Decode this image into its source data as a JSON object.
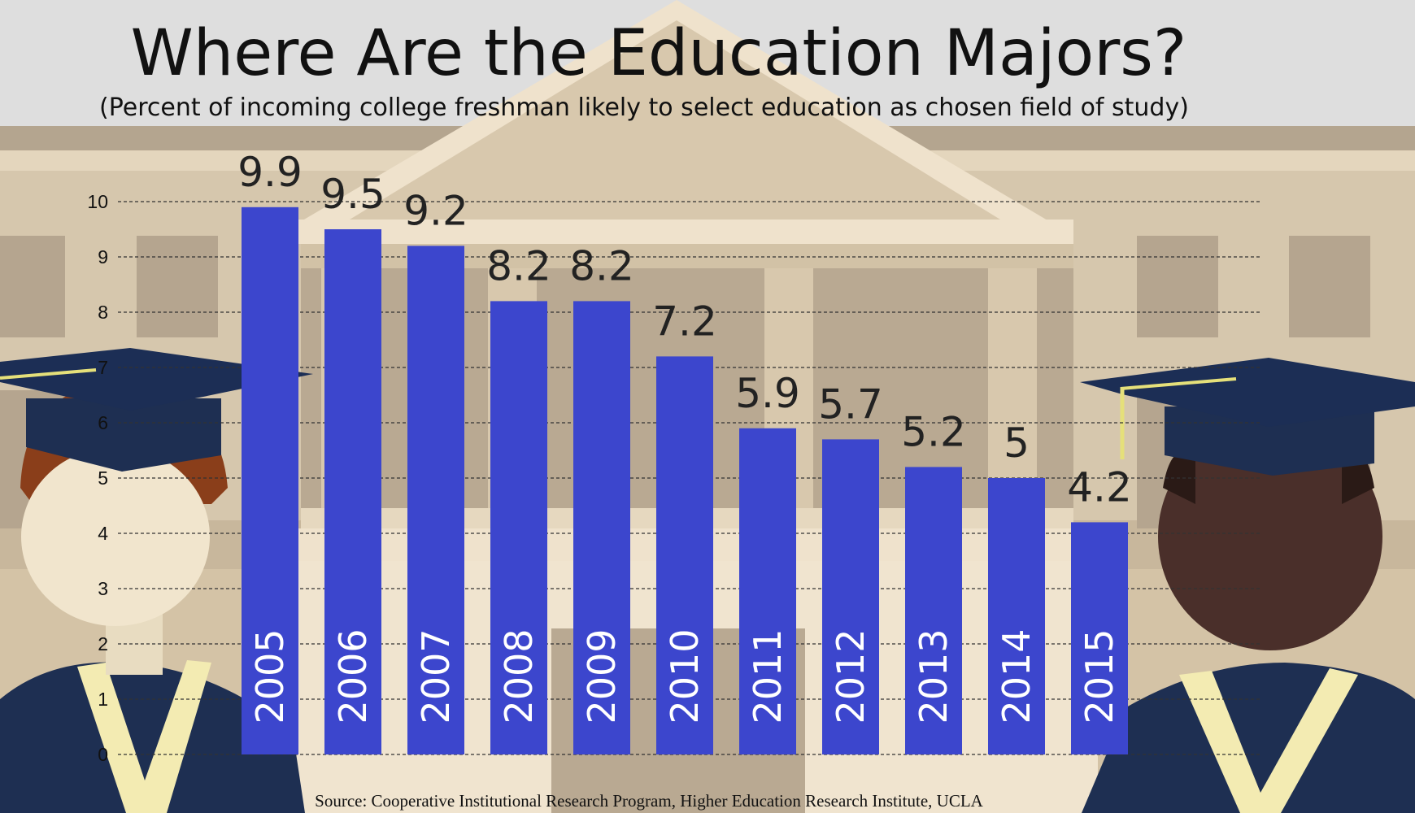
{
  "chart_data": {
    "type": "bar",
    "title": "Where Are the Education Majors?",
    "subtitle": "(Percent of incoming college freshman likely to select education as chosen field of study)",
    "source": "Source: Cooperative Institutional Research Program, Higher Education Research Institute, UCLA",
    "categories": [
      "2005",
      "2006",
      "2007",
      "2008",
      "2009",
      "2010",
      "2011",
      "2012",
      "2013",
      "2014",
      "2015"
    ],
    "values": [
      9.9,
      9.5,
      9.2,
      8.2,
      8.2,
      7.2,
      5.9,
      5.7,
      5.2,
      5,
      4.2
    ],
    "value_labels": [
      "9.9",
      "9.5",
      "9.2",
      "8.2",
      "8.2",
      "7.2",
      "5.9",
      "5.7",
      "5.2",
      "5",
      "4.2"
    ],
    "yticks": [
      "0",
      "1",
      "2",
      "3",
      "4",
      "5",
      "6",
      "7",
      "8",
      "9",
      "10"
    ],
    "ylim": [
      0,
      10
    ],
    "grid": true,
    "bar_color": "#3c46cd"
  }
}
